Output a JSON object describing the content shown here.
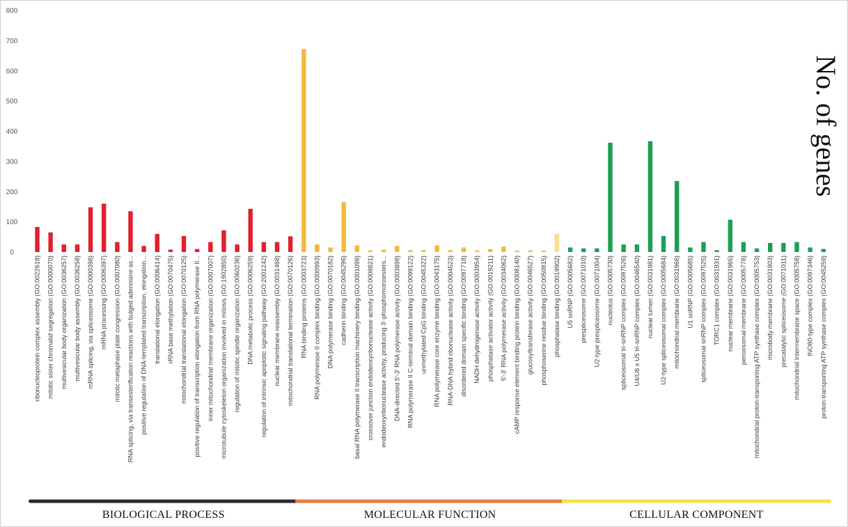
{
  "chart_data": {
    "type": "bar",
    "ylabel": "No. of genes",
    "ylim": [
      0,
      800
    ],
    "yticks": [
      "0",
      "100",
      "200",
      "300",
      "400",
      "500",
      "600",
      "700",
      "800"
    ],
    "grid": false,
    "legend": "none",
    "colors": {
      "biological_process": "#e0202e",
      "molecular_function": "#f4b83a",
      "molecular_function_highlight": "#f8df8c",
      "cellular_component": "#1e9e55",
      "group_line_biological": "#2b2b2b",
      "group_line_molecular": "#ec7b44",
      "group_line_cellular": "#f2e24a"
    },
    "groups": [
      {
        "name": "BIOLOGICAL PROCESS",
        "key": "biological_process",
        "categories": [
          "ribonucleoprotein complex assembly (GO:0022618)",
          "mitotic sister chromatid segregation (GO:0000070)",
          "multivesicular body organization (GO:0036257)",
          "multivesicular body assembly (GO:0036258)",
          "mRNA splicing, via spliceosome (GO:0000398)",
          "mRNA processing (GO:0006397)",
          "mitotic metaphase plate congression (GO:0007080)",
          "RNA splicing, via transesterification reactions with bulged adenosine as...",
          "positive regulation of DNA-templated transcription, elongation...",
          "translational elongation (GO:0006414)",
          "rRNA base methylation (GO:0070475)",
          "mitochondrial translational elongation (GO:0070125)",
          "positive regulation of transcription elongation from RNA polymerase II...",
          "inner mitochondrial membrane organization (GO:0007007)",
          "microtubule cytoskeleton organization involved in mitosis (GO:1902850)",
          "regulation of mitotic spindle organization (GO:0060236)",
          "DNA metabolic process (GO:0006259)",
          "regulation of intrinsic apoptotic signaling pathway (GO:2001242)",
          "nuclear membrane reassembly (GO:0031468)",
          "mitochondrial translational termination (GO:0070126)"
        ],
        "values": [
          83,
          65,
          25,
          25,
          148,
          160,
          33,
          135,
          20,
          60,
          8,
          53,
          10,
          33,
          72,
          25,
          143,
          33,
          33,
          52
        ]
      },
      {
        "name": "MOLECULAR FUNCTION",
        "key": "molecular_function",
        "categories": [
          "RNA binding proteins (GO:0003723)",
          "RNA polymerase II complex binding (GO:0000993)",
          "DNA polymerase binding (GO:0070182)",
          "cadherin binding (GO:0045296)",
          "basal RNA polymerase II transcription machinery binding (GO:0001099)",
          "crossover junction endodeoxyribonuclease activity (GO:0008821)",
          "endodeoxyribonuclease activity, producing 3'-phosphomonoesters...",
          "DNA-directed 5'-3' RNA polymerase activity (GO:0003899)",
          "RNA polymerase II C-terminal domain binding (GO:0099122)",
          "unmethylated CpG binding (GO:0045322)",
          "RNA polymerase core enzyme binding (GO:0043175)",
          "RNA-DNA hybrid ribonuclease activity (GO:0004523)",
          "disordered domain specific binding (GO:0097718)",
          "NADH dehydrogenase activity (GO:0003954)",
          "phosphatase activator activity (GO:0019211)",
          "5'-3' RNA polymerase activity (GO:0034062)",
          "cAMP response element binding protein binding (GO:0008140)",
          "glucosyltransferase activity (GO:0046527)",
          "phosphoserine residue binding (GO:0050815)",
          "phosphatase binding (GO:0019902)"
        ],
        "values": [
          672,
          25,
          15,
          165,
          22,
          5,
          8,
          20,
          6,
          6,
          22,
          6,
          15,
          5,
          10,
          18,
          5,
          5,
          5,
          60
        ]
      },
      {
        "name": "CELLULAR COMPONENT",
        "key": "cellular_component",
        "categories": [
          "U5 snRNP (GO:0005682)",
          "prespliceosome (GO:0071010)",
          "U2-type prespliceosome (GO:0071004)",
          "nucleolus (GO:0005730)",
          "spliceosomal tri-snRNP complex (GO:0097526)",
          "U4/U6 x U5 tri-snRNP complex (GO:0046540)",
          "nuclear lumen (GO:0031981)",
          "U2-type spliceosomal complex (GO:0005684)",
          "mitochondrial membrane (GO:0031966)",
          "U1 snRNP (GO:0005685)",
          "spliceosomal snRNP complex (GO:0097525)",
          "TORC1 complex (GO:0031931)",
          "nuclear membrane (GO:0031965)",
          "peroxisomal membrane (GO:0005778)",
          "mitochondrial proton-transporting ATP synthase complex (GO:0005753)",
          "microbody membrane (GO:0031903)",
          "precatalytic spliceosome (GO:0071011)",
          "mitochondrial intermembrane space (GO:0005758)",
          "INO80-type complex (GO:0097346)",
          "proton-transporting ATP synthase complex (GO:0045259)"
        ],
        "values": [
          15,
          12,
          12,
          362,
          25,
          25,
          367,
          53,
          235,
          15,
          33,
          6,
          107,
          33,
          12,
          30,
          30,
          33,
          15,
          10
        ]
      }
    ]
  }
}
